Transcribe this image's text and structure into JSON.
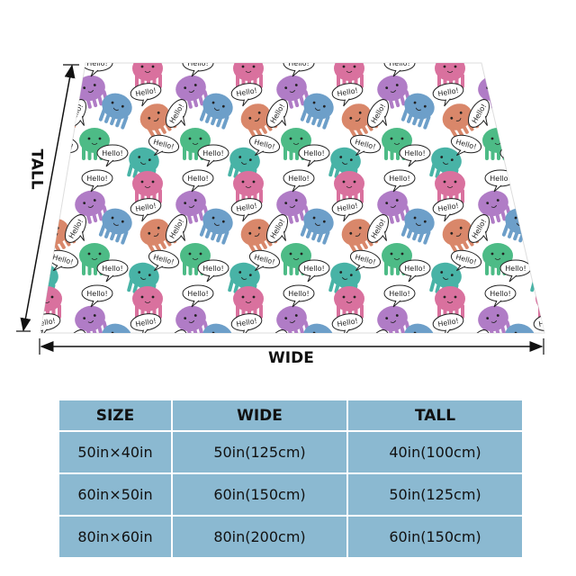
{
  "product": {
    "pattern_text": "Hello!",
    "pattern_colors": [
      "#d9719e",
      "#b07cc6",
      "#6d9fc9",
      "#d9876a",
      "#4dbb86",
      "#48b3a6"
    ],
    "table_color": "#8bb9d1"
  },
  "dimensions": {
    "tall_label": "TALL",
    "wide_label": "WIDE"
  },
  "size_table": {
    "headers": [
      "SIZE",
      "WIDE",
      "TALL"
    ],
    "rows": [
      [
        "50in×40in",
        "50in(125cm)",
        "40in(100cm)"
      ],
      [
        "60in×50in",
        "60in(150cm)",
        "50in(125cm)"
      ],
      [
        "80in×60in",
        "80in(200cm)",
        "60in(150cm)"
      ]
    ]
  }
}
